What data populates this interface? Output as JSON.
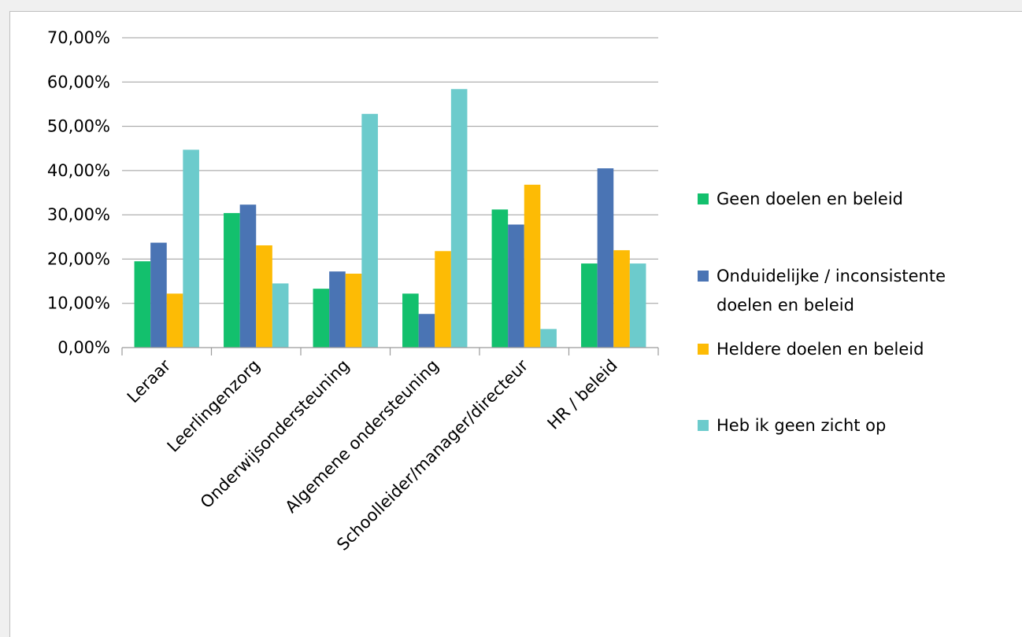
{
  "chart_data": {
    "type": "bar",
    "title": "",
    "xlabel": "",
    "ylabel": "",
    "ylim": [
      0,
      70
    ],
    "yticks": [
      "0,00%",
      "10,00%",
      "20,00%",
      "30,00%",
      "40,00%",
      "50,00%",
      "60,00%",
      "70,00%"
    ],
    "grid": true,
    "legend_position": "right",
    "categories": [
      "Leraar",
      "Leerlingenzorg",
      "Onderwijsondersteuning",
      "Algemene ondersteuning",
      "Schoolleider/manager/directeur",
      "HR / beleid"
    ],
    "series": [
      {
        "name": "Geen doelen en beleid",
        "color": "#13c06d",
        "values": [
          19.5,
          30.4,
          13.3,
          12.2,
          31.2,
          19.0
        ]
      },
      {
        "name": "Onduidelijke / inconsistente doelen en beleid",
        "color": "#4a74b4",
        "values": [
          23.7,
          32.3,
          17.2,
          7.6,
          27.8,
          40.5
        ]
      },
      {
        "name": "Heldere doelen en beleid",
        "color": "#fdbb05",
        "values": [
          12.2,
          23.1,
          16.7,
          21.8,
          36.8,
          22.0
        ]
      },
      {
        "name": "Heb ik geen zicht op",
        "color": "#6ccbcc",
        "values": [
          44.7,
          14.5,
          52.8,
          58.4,
          4.2,
          19.0
        ]
      }
    ]
  }
}
